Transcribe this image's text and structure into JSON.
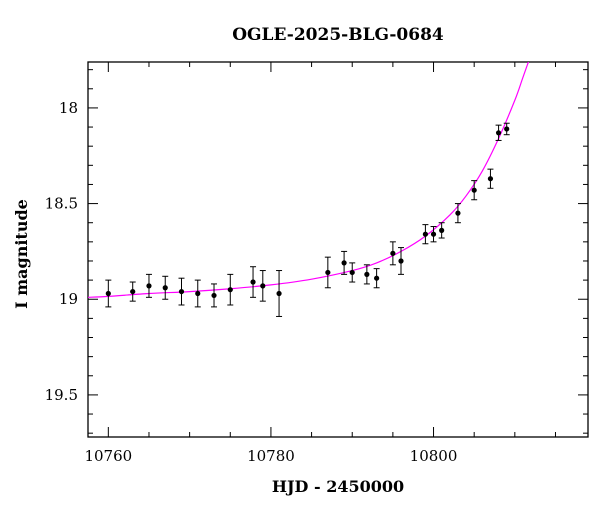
{
  "chart_data": {
    "type": "scatter",
    "title": "OGLE-2025-BLG-0684",
    "xlabel": "HJD - 2450000",
    "ylabel": "I magnitude",
    "xlim": [
      10757.5,
      10819
    ],
    "ylim": [
      19.72,
      17.76
    ],
    "y_inverted": true,
    "x_ticks": [
      10760,
      10780,
      10800
    ],
    "y_ticks": [
      18,
      18.5,
      19,
      19.5
    ],
    "x_tick_labels": [
      "10760",
      "10780",
      "10800"
    ],
    "y_tick_labels": [
      "18",
      "18.5",
      "19",
      "19.5"
    ],
    "grid": false,
    "legend": "none",
    "series": [
      {
        "kind": "points_with_errorbars",
        "color": "#000000",
        "points": [
          {
            "x": 10760.0,
            "y": 18.97,
            "err": 0.07
          },
          {
            "x": 10763.0,
            "y": 18.96,
            "err": 0.05
          },
          {
            "x": 10765.0,
            "y": 18.93,
            "err": 0.06
          },
          {
            "x": 10767.0,
            "y": 18.94,
            "err": 0.06
          },
          {
            "x": 10769.0,
            "y": 18.96,
            "err": 0.07
          },
          {
            "x": 10771.0,
            "y": 18.97,
            "err": 0.07
          },
          {
            "x": 10773.0,
            "y": 18.98,
            "err": 0.06
          },
          {
            "x": 10775.0,
            "y": 18.95,
            "err": 0.08
          },
          {
            "x": 10777.8,
            "y": 18.91,
            "err": 0.08
          },
          {
            "x": 10779.0,
            "y": 18.93,
            "err": 0.08
          },
          {
            "x": 10781.0,
            "y": 18.97,
            "err": 0.12
          },
          {
            "x": 10787.0,
            "y": 18.86,
            "err": 0.08
          },
          {
            "x": 10789.0,
            "y": 18.81,
            "err": 0.06
          },
          {
            "x": 10790.0,
            "y": 18.86,
            "err": 0.05
          },
          {
            "x": 10791.8,
            "y": 18.87,
            "err": 0.05
          },
          {
            "x": 10793.0,
            "y": 18.89,
            "err": 0.05
          },
          {
            "x": 10795.0,
            "y": 18.76,
            "err": 0.06
          },
          {
            "x": 10796.0,
            "y": 18.8,
            "err": 0.07
          },
          {
            "x": 10799.0,
            "y": 18.66,
            "err": 0.05
          },
          {
            "x": 10800.0,
            "y": 18.66,
            "err": 0.04
          },
          {
            "x": 10801.0,
            "y": 18.64,
            "err": 0.04
          },
          {
            "x": 10803.0,
            "y": 18.55,
            "err": 0.05
          },
          {
            "x": 10805.0,
            "y": 18.43,
            "err": 0.05
          },
          {
            "x": 10807.0,
            "y": 18.37,
            "err": 0.05
          },
          {
            "x": 10808.0,
            "y": 18.13,
            "err": 0.04
          },
          {
            "x": 10809.0,
            "y": 18.11,
            "err": 0.03
          }
        ]
      },
      {
        "kind": "model_curve",
        "color": "#ff00ff",
        "x": [
          10757.5,
          10760,
          10765,
          10770,
          10775,
          10780,
          10785,
          10790,
          10793,
          10796,
          10799,
          10802,
          10804,
          10806,
          10808,
          10810,
          10811,
          10812
        ],
        "y": [
          18.99,
          18.985,
          18.97,
          18.96,
          18.945,
          18.925,
          18.895,
          18.85,
          18.81,
          18.75,
          18.67,
          18.56,
          18.46,
          18.33,
          18.16,
          17.96,
          17.84,
          17.72
        ]
      }
    ]
  }
}
